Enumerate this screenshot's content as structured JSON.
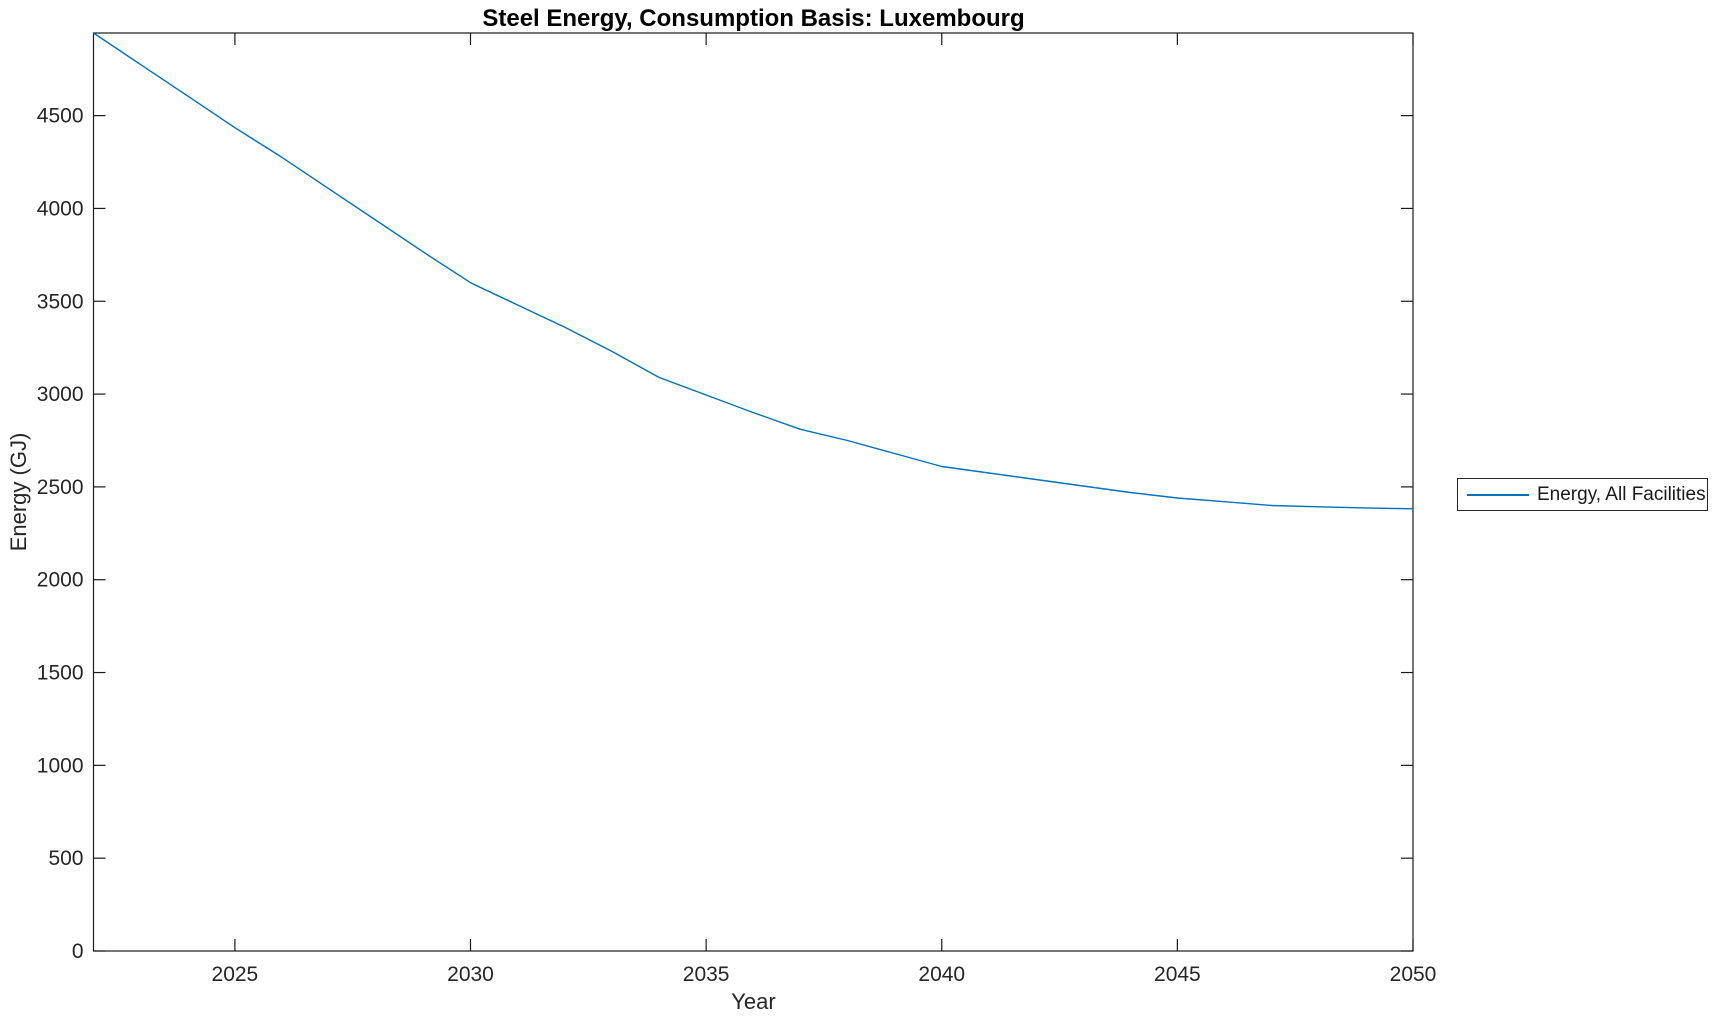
{
  "figure": {
    "title": "Steel Energy, Consumption Basis: Luxembourg",
    "xlabel": "Year",
    "ylabel": "Energy (GJ)"
  },
  "legend": {
    "entries": [
      {
        "label": "Energy, All Facilities",
        "color": "#0072BD"
      }
    ]
  },
  "colors": {
    "line": "#0072BD",
    "axis": "#1a1a1a",
    "tick_label": "#262626",
    "title": "#000000",
    "background": "#ffffff"
  },
  "chart_data": {
    "type": "line",
    "title": "Steel Energy, Consumption Basis: Luxembourg",
    "xlabel": "Year",
    "ylabel": "Energy (GJ)",
    "xlim": [
      2022,
      2050
    ],
    "ylim": [
      0,
      4945
    ],
    "xticks": [
      2025,
      2030,
      2035,
      2040,
      2045,
      2050
    ],
    "yticks": [
      0,
      500,
      1000,
      1500,
      2000,
      2500,
      3000,
      3500,
      4000,
      4500
    ],
    "grid": false,
    "legend_position": "right-outside",
    "series": [
      {
        "name": "Energy, All Facilities",
        "color": "#0072BD",
        "x": [
          2022,
          2023,
          2024,
          2025,
          2026,
          2027,
          2028,
          2029,
          2030,
          2031,
          2032,
          2033,
          2034,
          2035,
          2036,
          2037,
          2038,
          2039,
          2040,
          2041,
          2042,
          2043,
          2044,
          2045,
          2046,
          2047,
          2048,
          2049,
          2050
        ],
        "y": [
          4945,
          4775,
          4605,
          4435,
          4275,
          4105,
          3935,
          3765,
          3600,
          3480,
          3360,
          3230,
          3090,
          2995,
          2900,
          2810,
          2750,
          2680,
          2610,
          2575,
          2540,
          2505,
          2470,
          2440,
          2420,
          2400,
          2393,
          2387,
          2382
        ]
      }
    ]
  }
}
